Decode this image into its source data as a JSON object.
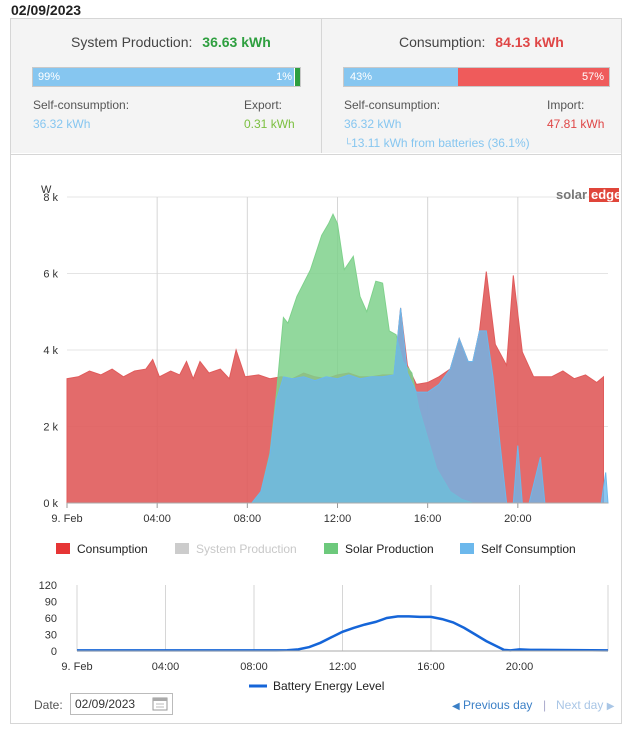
{
  "header": {
    "date": "02/09/2023"
  },
  "production": {
    "title": "System Production:",
    "total": "36.63 kWh",
    "self_pct_label": "99%",
    "self_pct": 99,
    "export_pct_label": "1%",
    "self_label": "Self-consumption:",
    "self_value": "36.32 kWh",
    "export_label": "Export:",
    "export_value": "0.31 kWh"
  },
  "consumption": {
    "title": "Consumption:",
    "total": "84.13 kWh",
    "self_pct_label": "43%",
    "self_pct": 43,
    "import_pct_label": "57%",
    "self_label": "Self-consumption:",
    "self_value": "36.32 kWh",
    "batteries_note": "13.11 kWh from batteries (36.1%)",
    "import_label": "Import:",
    "import_value": "47.81 kWh"
  },
  "colors": {
    "production_green": "#2e9f3f",
    "consumption_red": "#e05b5b",
    "self_blue": "#86c6f0",
    "export_green": "#7bbf3f",
    "import_red": "#df4646"
  },
  "logo": {
    "text_a": "solar",
    "text_b": "edge"
  },
  "chart_data": [
    {
      "type": "area",
      "ylabel": "W",
      "ylim": [
        0,
        8000
      ],
      "yticks": [
        "0 k",
        "2 k",
        "4 k",
        "6 k",
        "8 k"
      ],
      "xlim": [
        0,
        24
      ],
      "xticks": [
        "9. Feb",
        "04:00",
        "08:00",
        "12:00",
        "16:00",
        "20:00"
      ],
      "grid": true,
      "legend_position": "bottom",
      "series": [
        {
          "name": "Consumption",
          "color": "#e05b5b",
          "points": [
            [
              0,
              3250
            ],
            [
              0.5,
              3300
            ],
            [
              1,
              3450
            ],
            [
              1.5,
              3350
            ],
            [
              2,
              3500
            ],
            [
              2.5,
              3300
            ],
            [
              3,
              3450
            ],
            [
              3.5,
              3500
            ],
            [
              3.8,
              3750
            ],
            [
              4.1,
              3300
            ],
            [
              4.6,
              3450
            ],
            [
              5,
              3350
            ],
            [
              5.3,
              3700
            ],
            [
              5.6,
              3250
            ],
            [
              5.9,
              3700
            ],
            [
              6.3,
              3400
            ],
            [
              6.8,
              3500
            ],
            [
              7.2,
              3250
            ],
            [
              7.5,
              4000
            ],
            [
              7.9,
              3300
            ],
            [
              8.5,
              3350
            ],
            [
              9,
              3250
            ],
            [
              9.5,
              3300
            ],
            [
              10,
              3250
            ],
            [
              10.5,
              3400
            ],
            [
              11,
              3300
            ],
            [
              11.5,
              3250
            ],
            [
              12,
              3350
            ],
            [
              12.5,
              3400
            ],
            [
              13,
              3300
            ],
            [
              13.5,
              3300
            ],
            [
              14,
              3350
            ],
            [
              14.5,
              3350
            ],
            [
              14.8,
              5100
            ],
            [
              15.1,
              3600
            ],
            [
              15.5,
              3100
            ],
            [
              16,
              3150
            ],
            [
              16.5,
              3300
            ],
            [
              17,
              3500
            ],
            [
              17.4,
              4300
            ],
            [
              17.8,
              3700
            ],
            [
              18,
              3700
            ],
            [
              18.3,
              4500
            ],
            [
              18.6,
              6050
            ],
            [
              19,
              4150
            ],
            [
              19.5,
              3600
            ],
            [
              19.8,
              5950
            ],
            [
              20.2,
              3950
            ],
            [
              20.7,
              3300
            ],
            [
              21.5,
              3300
            ],
            [
              22,
              3450
            ],
            [
              22.5,
              3250
            ],
            [
              23,
              3350
            ],
            [
              23.5,
              3150
            ],
            [
              23.8,
              3300
            ]
          ]
        },
        {
          "name": "System Production",
          "color": "#d0d0d0",
          "hidden": true,
          "points": []
        },
        {
          "name": "Solar Production",
          "color": "#7fd18c",
          "points": [
            [
              0,
              0
            ],
            [
              8.2,
              0
            ],
            [
              8.6,
              300
            ],
            [
              9,
              1300
            ],
            [
              9.3,
              2900
            ],
            [
              9.6,
              4850
            ],
            [
              9.8,
              4700
            ],
            [
              10.2,
              5400
            ],
            [
              10.8,
              6100
            ],
            [
              11.3,
              7000
            ],
            [
              11.6,
              7300
            ],
            [
              11.8,
              7550
            ],
            [
              12,
              7300
            ],
            [
              12.3,
              6100
            ],
            [
              12.7,
              6450
            ],
            [
              13,
              5400
            ],
            [
              13.3,
              5000
            ],
            [
              13.7,
              5800
            ],
            [
              14,
              5750
            ],
            [
              14.3,
              4500
            ],
            [
              14.6,
              4400
            ],
            [
              14.9,
              3700
            ],
            [
              15.3,
              3400
            ],
            [
              15.6,
              2500
            ],
            [
              16,
              1700
            ],
            [
              16.4,
              900
            ],
            [
              17,
              300
            ],
            [
              17.5,
              100
            ],
            [
              18,
              0
            ],
            [
              24,
              0
            ]
          ]
        },
        {
          "name": "Self Consumption",
          "color": "#6cb8ec",
          "points": [
            [
              0,
              0
            ],
            [
              8.2,
              0
            ],
            [
              8.6,
              300
            ],
            [
              9,
              1250
            ],
            [
              9.3,
              2700
            ],
            [
              9.6,
              3300
            ],
            [
              10,
              3250
            ],
            [
              10.5,
              3300
            ],
            [
              11,
              3200
            ],
            [
              11.5,
              3300
            ],
            [
              12,
              3250
            ],
            [
              12.5,
              3350
            ],
            [
              13,
              3250
            ],
            [
              13.5,
              3300
            ],
            [
              14,
              3300
            ],
            [
              14.5,
              3350
            ],
            [
              14.8,
              5100
            ],
            [
              15.1,
              3400
            ],
            [
              15.5,
              2900
            ],
            [
              16,
              2900
            ],
            [
              16.5,
              3100
            ],
            [
              17,
              3500
            ],
            [
              17.4,
              4300
            ],
            [
              17.8,
              3700
            ],
            [
              18,
              3700
            ],
            [
              18.3,
              4500
            ],
            [
              18.6,
              4500
            ],
            [
              18.9,
              3300
            ],
            [
              19.2,
              1600
            ],
            [
              19.5,
              0
            ],
            [
              19.8,
              0
            ],
            [
              20,
              1500
            ],
            [
              20.2,
              0
            ],
            [
              20.5,
              0
            ],
            [
              21,
              1200
            ],
            [
              21.2,
              0
            ],
            [
              23.7,
              0
            ],
            [
              23.9,
              800
            ],
            [
              24,
              0
            ]
          ]
        }
      ]
    },
    {
      "type": "line",
      "ylim": [
        0,
        120
      ],
      "yticks": [
        "0",
        "30",
        "60",
        "90",
        "120"
      ],
      "extra_ytick": "120",
      "xlim": [
        0,
        24
      ],
      "xticks": [
        "9. Feb",
        "04:00",
        "08:00",
        "12:00",
        "16:00",
        "20:00"
      ],
      "grid": true,
      "legend_position": "bottom",
      "series": [
        {
          "name": "Battery Energy Level",
          "color": "#1565d8",
          "points": [
            [
              0,
              1
            ],
            [
              9,
              1
            ],
            [
              9.5,
              1.5
            ],
            [
              10,
              3
            ],
            [
              10.5,
              7
            ],
            [
              11,
              15
            ],
            [
              11.5,
              25
            ],
            [
              12,
              35
            ],
            [
              12.5,
              42
            ],
            [
              13,
              48
            ],
            [
              13.5,
              53
            ],
            [
              14,
              60
            ],
            [
              14.5,
              63
            ],
            [
              15,
              63
            ],
            [
              15.5,
              62
            ],
            [
              16,
              62
            ],
            [
              16.5,
              58
            ],
            [
              17,
              52
            ],
            [
              17.5,
              42
            ],
            [
              18,
              30
            ],
            [
              18.5,
              18
            ],
            [
              19,
              8
            ],
            [
              19.3,
              2
            ],
            [
              19.6,
              1
            ],
            [
              20,
              3
            ],
            [
              20.5,
              2
            ],
            [
              21,
              2
            ],
            [
              24,
              1
            ]
          ]
        }
      ]
    }
  ],
  "legend": {
    "consumption": "Consumption",
    "system_production": "System Production",
    "solar_production": "Solar Production",
    "self_consumption": "Self Consumption",
    "battery": "Battery Energy Level"
  },
  "footer": {
    "date_label": "Date:",
    "date_value": "02/09/2023",
    "prev": "Previous day",
    "separator": "|",
    "next": "Next day"
  }
}
